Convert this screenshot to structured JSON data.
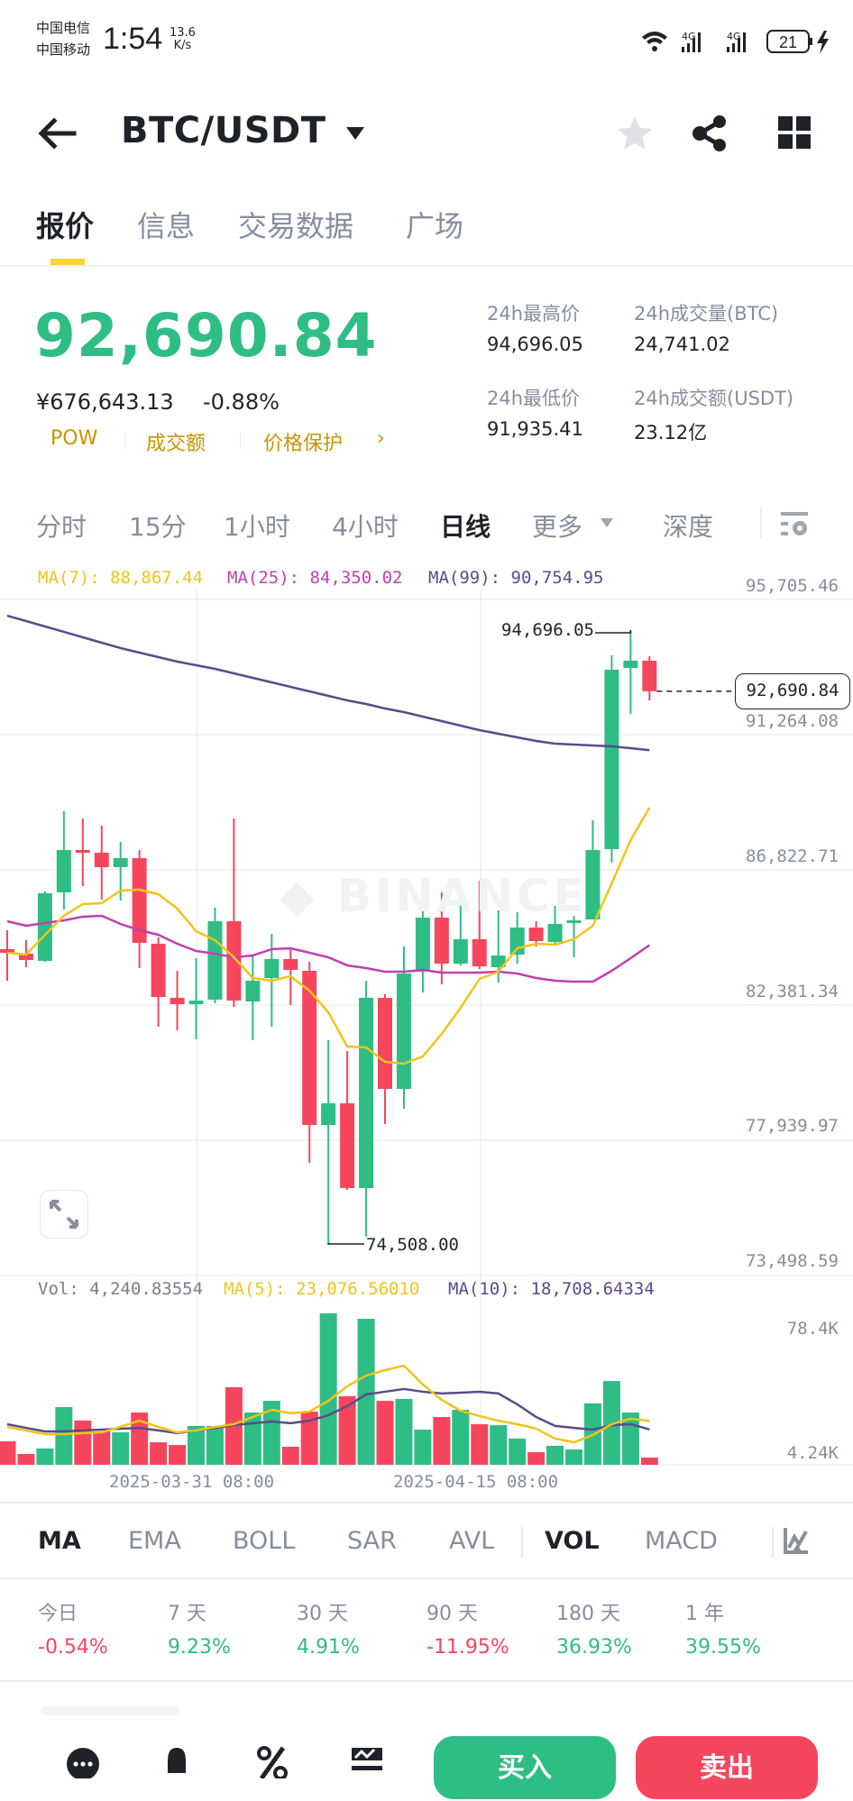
{
  "status_bar": {
    "carrier_1": "中国电信",
    "carrier_2": "中国移动",
    "time": "1:54",
    "net_speed_value": "13.6",
    "net_speed_unit": "K/s",
    "signal_1": "4G",
    "signal_2": "4G",
    "battery": "21"
  },
  "header": {
    "back_icon": "arrow-left",
    "pair": "BTC/USDT",
    "dropdown_icon": "caret-down",
    "favorite_icon": "star",
    "share_icon": "share",
    "menu_icon": "grid"
  },
  "tabs": [
    {
      "label": "报价",
      "active": true
    },
    {
      "label": "信息",
      "active": false
    },
    {
      "label": "交易数据",
      "active": false
    },
    {
      "label": "广场",
      "active": false
    }
  ],
  "price": {
    "last": "92,690.84",
    "cny": "¥676,643.13",
    "change": "-0.88%",
    "tags": [
      "POW",
      "成交额",
      "价格保护"
    ],
    "tag_arrow": "›"
  },
  "stats": {
    "high_label": "24h最高价",
    "high_value": "94,696.05",
    "low_label": "24h最低价",
    "low_value": "91,935.41",
    "vol_btc_label": "24h成交量(BTC)",
    "vol_btc_value": "24,741.02",
    "vol_usdt_label": "24h成交额(USDT)",
    "vol_usdt_value": "23.12亿"
  },
  "intervals": [
    {
      "label": "分时",
      "active": false
    },
    {
      "label": "15分",
      "active": false
    },
    {
      "label": "1小时",
      "active": false
    },
    {
      "label": "4小时",
      "active": false
    },
    {
      "label": "日线",
      "active": true
    },
    {
      "label": "更多",
      "active": false
    },
    {
      "label": "深度",
      "active": false
    }
  ],
  "chart_legend": {
    "ma7": "MA(7): 88,867.44",
    "ma25": "MA(25): 84,350.02",
    "ma99": "MA(99): 90,754.95"
  },
  "volume_legend": {
    "vol": "Vol: 4,240.83554",
    "ma5": "MA(5): 23,076.56010",
    "ma10": "MA(10): 18,708.64334"
  },
  "colors": {
    "up": "#2ebd85",
    "down": "#f6465d",
    "ma7": "#f0c419",
    "ma25": "#c23fb1",
    "ma99": "#5b4b8a",
    "vol_ma5": "#f0c419",
    "vol_ma10": "#5b4b8a",
    "accent": "#fcd535"
  },
  "chart_data": {
    "type": "candlestick",
    "title": "BTC/USDT 日线",
    "price_axis": {
      "ticks": [
        "95,705.46",
        "91,264.08",
        "86,822.71",
        "82,381.34",
        "77,939.97",
        "73,498.59"
      ],
      "max": 95705.46,
      "min": 73498.59
    },
    "x_labels": [
      "2025-03-31 08:00",
      "2025-04-15 08:00"
    ],
    "high_annotation": "94,696.05",
    "low_annotation": "74,508.00",
    "current_price_label": "92,690.84",
    "candles": [
      [
        84217,
        84839,
        83181,
        84099
      ],
      [
        84069,
        84513,
        83625,
        83862
      ],
      [
        83832,
        86112,
        83803,
        86053
      ],
      [
        86083,
        88747,
        85520,
        87474
      ],
      [
        87474,
        88510,
        86290,
        87385
      ],
      [
        87385,
        88273,
        85846,
        86911
      ],
      [
        86911,
        87740,
        85816,
        87208
      ],
      [
        87208,
        87474,
        83595,
        84424
      ],
      [
        84395,
        84602,
        81671,
        82648
      ],
      [
        82618,
        83506,
        81552,
        82411
      ],
      [
        82411,
        83921,
        81256,
        82529
      ],
      [
        82559,
        85579,
        82440,
        85135
      ],
      [
        85135,
        88510,
        82322,
        82529
      ],
      [
        82500,
        83981,
        81227,
        83181
      ],
      [
        83270,
        84721,
        81671,
        83892
      ],
      [
        83892,
        84247,
        82381,
        83536
      ],
      [
        83506,
        83803,
        77199,
        78443
      ],
      [
        78443,
        81227,
        74508,
        79154
      ],
      [
        79154,
        80871,
        76311,
        76370
      ],
      [
        76370,
        83181,
        74772,
        82618
      ],
      [
        82618,
        82737,
        78473,
        79628
      ],
      [
        79628,
        84306,
        78976,
        83418
      ],
      [
        83477,
        85846,
        82796,
        85253
      ],
      [
        85253,
        86083,
        83062,
        83743
      ],
      [
        83743,
        85786,
        83684,
        84543
      ],
      [
        84543,
        86467,
        83566,
        83654
      ],
      [
        83625,
        85490,
        83122,
        84010
      ],
      [
        84040,
        85431,
        83743,
        84928
      ],
      [
        84928,
        85135,
        84306,
        84484
      ],
      [
        84454,
        85638,
        84395,
        85046
      ],
      [
        85076,
        85313,
        83951,
        85164
      ],
      [
        85194,
        88451,
        85194,
        87474
      ],
      [
        87504,
        93870,
        87060,
        93396
      ],
      [
        93455,
        94696.05,
        91945,
        93692
      ],
      [
        93692,
        93840,
        92389,
        92690.84
      ]
    ],
    "ma7": [
      84099,
      84040,
      84691,
      85313,
      85698,
      85727,
      86142,
      86172,
      86023,
      85550,
      84809,
      84513,
      83951,
      83270,
      83181,
      83329,
      82855,
      82145,
      81020,
      80990,
      80516,
      80457,
      80694,
      81434,
      82293,
      83240,
      83477,
      84247,
      84395,
      84365,
      84543,
      84987,
      86378,
      87800,
      88867.44
    ],
    "ma25": [
      85135,
      84987,
      85076,
      85164,
      85283,
      85313,
      85046,
      84839,
      84691,
      84395,
      84158,
      84069,
      83951,
      84010,
      84217,
      84247,
      84099,
      83951,
      83684,
      83595,
      83477,
      83477,
      83536,
      83447,
      83447,
      83447,
      83477,
      83418,
      83270,
      83181,
      83151,
      83151,
      83506,
      83921,
      84350.02
    ],
    "ma99": [
      95172,
      94995,
      94817,
      94640,
      94462,
      94284,
      94107,
      93959,
      93811,
      93663,
      93544,
      93426,
      93278,
      93130,
      92982,
      92834,
      92685,
      92537,
      92389,
      92271,
      92123,
      92004,
      91856,
      91708,
      91560,
      91412,
      91294,
      91175,
      91057,
      90968,
      90938,
      90909,
      90879,
      90820,
      90754.95
    ],
    "volume_axis": {
      "ticks": [
        "78.4K",
        "4.24K"
      ],
      "max": 78.4,
      "min": 4.24
    },
    "volume_k": [
      12.6,
      6.1,
      8.9,
      30.2,
      23.3,
      17.7,
      17.2,
      27.4,
      12.1,
      10.7,
      20.5,
      20.5,
      40.4,
      27.4,
      33.4,
      9.8,
      27.9,
      78.4,
      35.8,
      75.6,
      33.4,
      34.4,
      18.6,
      25.1,
      28.8,
      21.4,
      20.9,
      14.0,
      7.0,
      10.3,
      8.4,
      32.1,
      43.6,
      27.4,
      4.24
    ],
    "vol_ma5_k": [
      20.0,
      18.2,
      16.3,
      16.3,
      16.8,
      17.2,
      20.0,
      23.2,
      20.0,
      17.2,
      18.2,
      20.0,
      21.4,
      25.1,
      28.8,
      27.0,
      27.9,
      33.4,
      40.9,
      46.4,
      49.2,
      51.5,
      41.8,
      33.9,
      28.3,
      25.6,
      23.2,
      21.4,
      19.1,
      14.0,
      12.1,
      15.8,
      21.4,
      24.2,
      23.08
    ],
    "vol_ma10_k": [
      21.4,
      19.5,
      17.7,
      17.7,
      18.2,
      18.6,
      19.1,
      19.5,
      18.2,
      16.8,
      18.2,
      19.5,
      20.9,
      21.9,
      22.8,
      21.9,
      23.2,
      26.0,
      30.7,
      36.7,
      38.1,
      39.5,
      38.1,
      37.2,
      37.6,
      38.1,
      37.2,
      31.6,
      25.1,
      20.5,
      19.5,
      18.6,
      20.9,
      21.4,
      18.71
    ]
  },
  "indicators": [
    {
      "label": "MA",
      "active": true
    },
    {
      "label": "EMA",
      "active": false
    },
    {
      "label": "BOLL",
      "active": false
    },
    {
      "label": "SAR",
      "active": false
    },
    {
      "label": "AVL",
      "active": false
    },
    {
      "label": "VOL",
      "active": true
    },
    {
      "label": "MACD",
      "active": false
    }
  ],
  "performance": [
    {
      "label": "今日",
      "value": "-0.54%",
      "direction": "down"
    },
    {
      "label": "7 天",
      "value": "9.23%",
      "direction": "up"
    },
    {
      "label": "30 天",
      "value": "4.91%",
      "direction": "up"
    },
    {
      "label": "90 天",
      "value": "-11.95%",
      "direction": "down"
    },
    {
      "label": "180 天",
      "value": "36.93%",
      "direction": "up"
    },
    {
      "label": "1 年",
      "value": "39.55%",
      "direction": "up"
    }
  ],
  "bottom_bar": {
    "icons": [
      "chat-icon",
      "bell-icon",
      "percent-icon",
      "grid-chart-icon"
    ],
    "buy_label": "买入",
    "sell_label": "卖出"
  }
}
